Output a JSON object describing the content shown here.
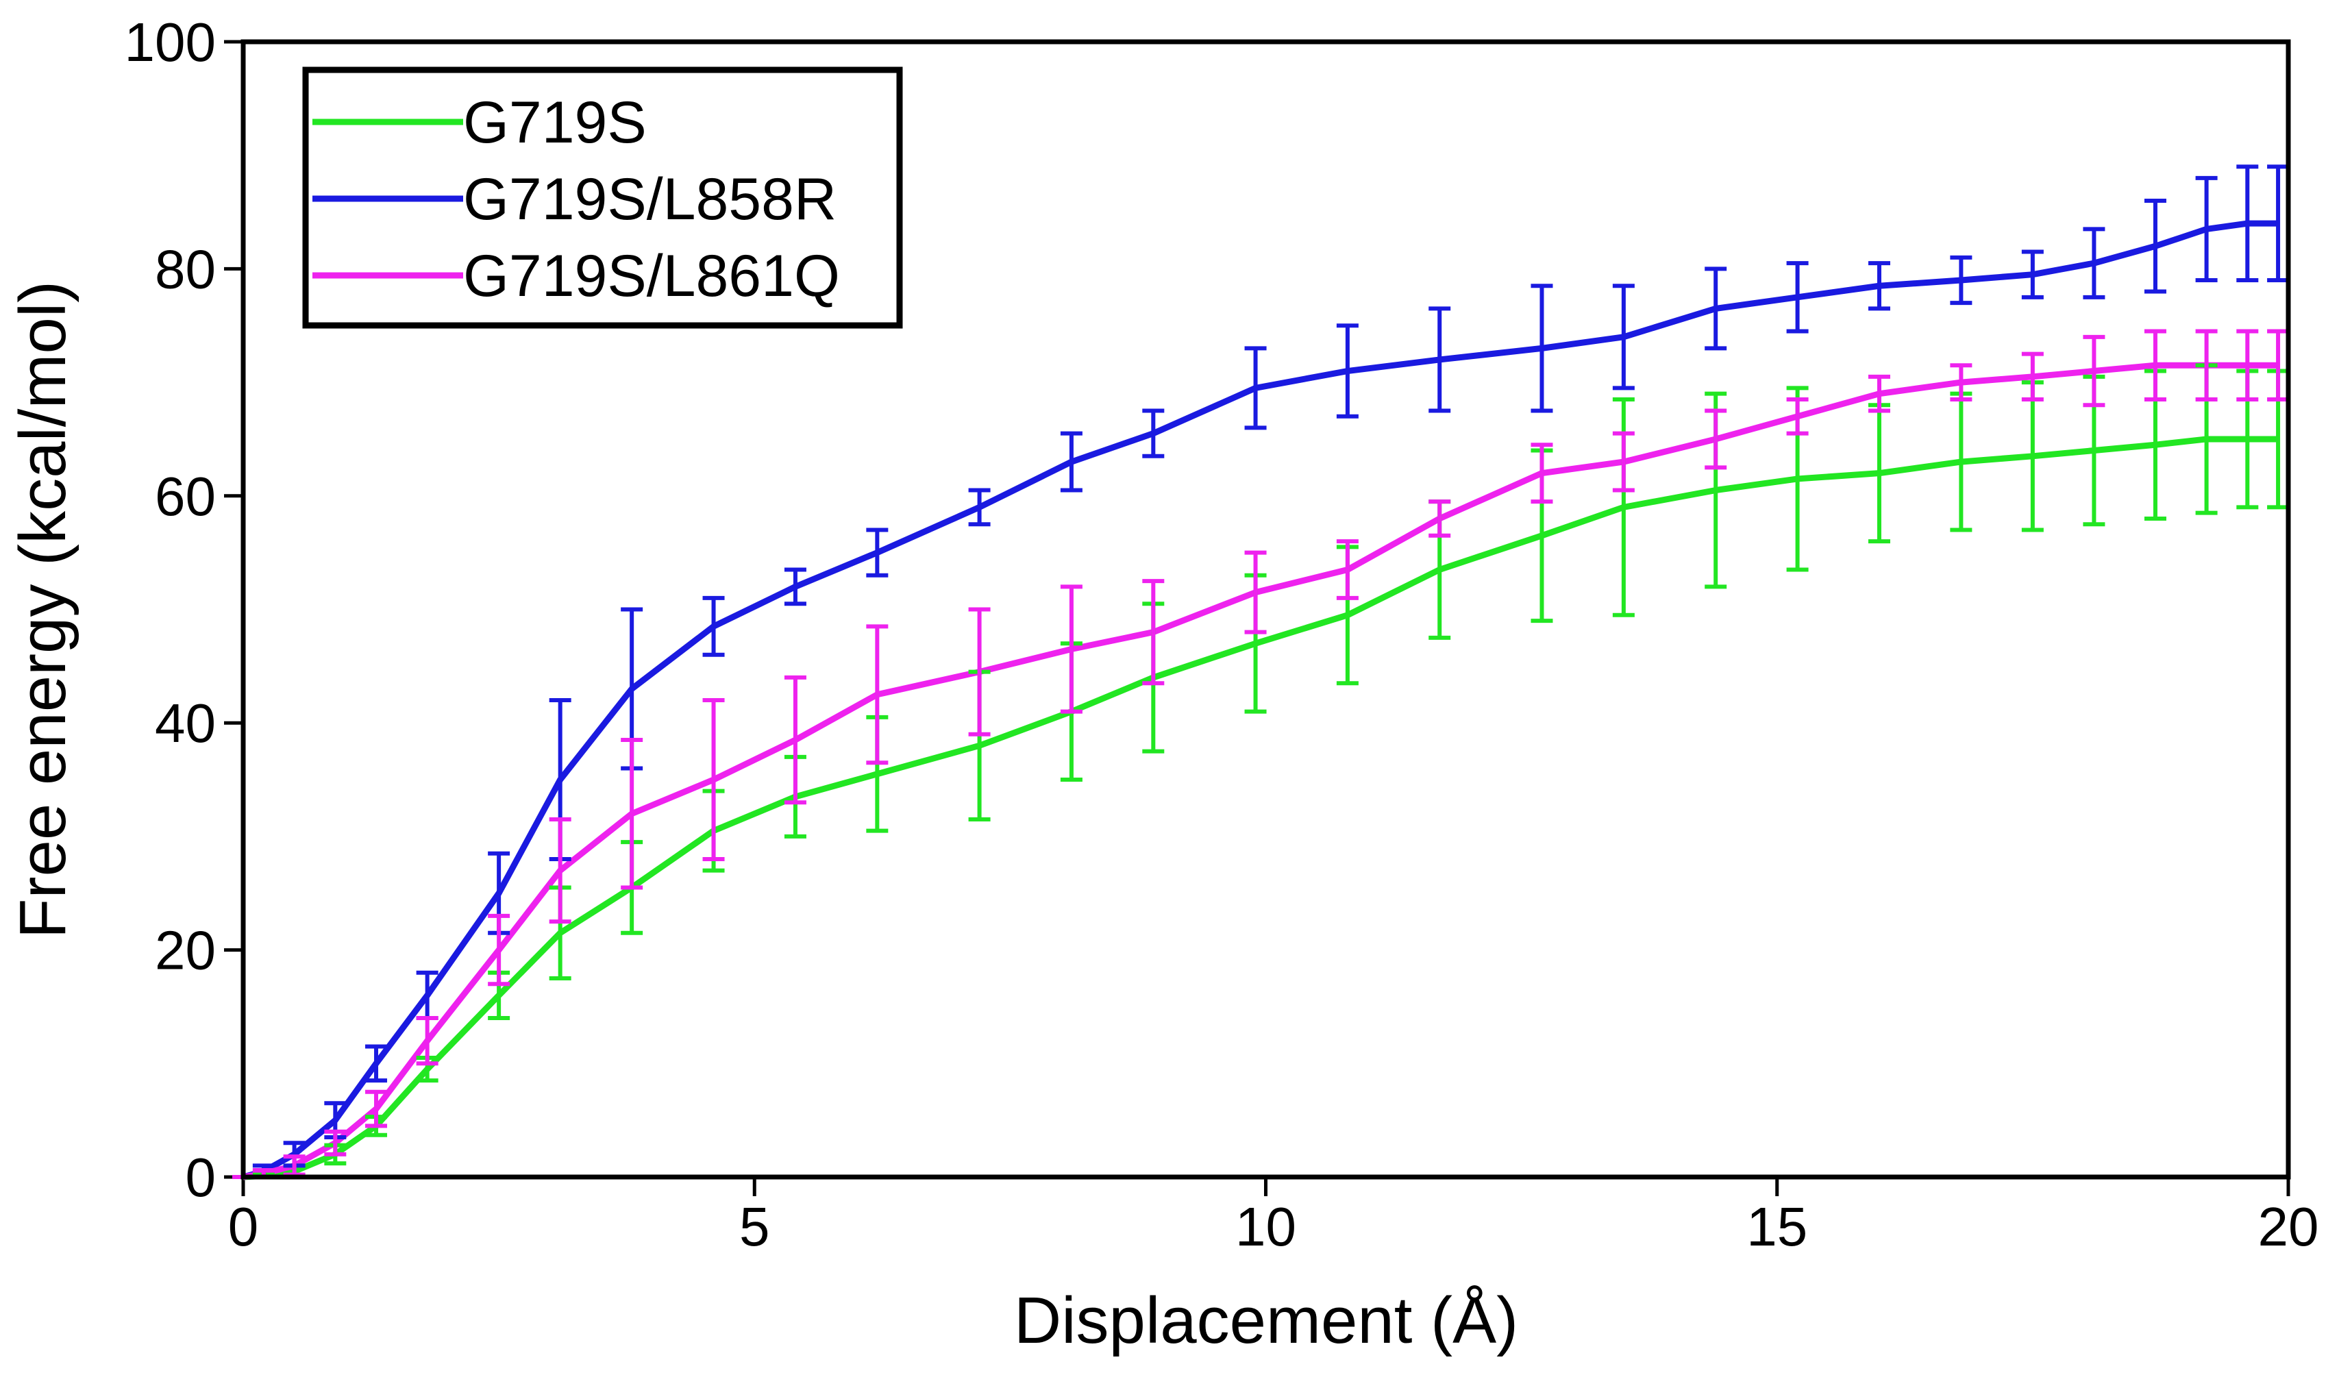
{
  "chart_data": {
    "type": "line",
    "xlabel": "Displacement (Å)",
    "ylabel": "Free energy (kcal/mol)",
    "x": [
      0,
      0.2,
      0.5,
      0.9,
      1.3,
      1.8,
      2.5,
      3.1,
      3.8,
      4.6,
      5.4,
      6.2,
      7.2,
      8.1,
      8.9,
      9.9,
      10.8,
      11.7,
      12.7,
      13.5,
      14.4,
      15.2,
      16,
      16.8,
      17.5,
      18.1,
      18.7,
      19.2,
      19.6,
      19.9
    ],
    "series": [
      {
        "name": "G719S",
        "color": "#22e622",
        "values": [
          0,
          0.1,
          0.5,
          2,
          4.5,
          9.5,
          16,
          21.5,
          25.5,
          30.5,
          33.5,
          35.5,
          38,
          41,
          44,
          47,
          49.5,
          53.5,
          56.5,
          59,
          60.5,
          61.5,
          62,
          63,
          63.5,
          64,
          64.5,
          65,
          65,
          65
        ],
        "errors": [
          0,
          0.1,
          0.5,
          0.8,
          0.8,
          1,
          2,
          4,
          4,
          3.5,
          3.5,
          5,
          6.5,
          6,
          6.5,
          6,
          6,
          6,
          7.5,
          9.5,
          8.5,
          8,
          6,
          6,
          6.5,
          6.5,
          6.5,
          6.5,
          6,
          6
        ]
      },
      {
        "name": "G719S/L858R",
        "color": "#1a1ae0",
        "values": [
          0,
          0.5,
          2,
          5,
          10,
          16,
          25,
          35,
          43,
          48.5,
          52,
          55,
          59,
          63,
          65.5,
          69.5,
          71,
          72,
          73,
          74,
          76.5,
          77.5,
          78.5,
          79,
          79.5,
          80.5,
          82,
          83.5,
          84,
          84
        ],
        "errors": [
          0,
          0.5,
          1,
          1.5,
          1.5,
          2,
          3.5,
          7,
          7,
          2.5,
          1.5,
          2,
          1.5,
          2.5,
          2,
          3.5,
          4,
          4.5,
          5.5,
          4.5,
          3.5,
          3,
          2,
          2,
          2,
          3,
          4,
          4.5,
          5,
          5
        ]
      },
      {
        "name": "G719S/L861Q",
        "color": "#ee22ee",
        "values": [
          0,
          0.3,
          1,
          3,
          6,
          12,
          20,
          27,
          32,
          35,
          38.5,
          42.5,
          44.5,
          46.5,
          48,
          51.5,
          53.5,
          58,
          62,
          63,
          65,
          67,
          69,
          70,
          70.5,
          71,
          71.5,
          71.5,
          71.5,
          71.5
        ],
        "errors": [
          0,
          0.3,
          0.8,
          1,
          1.5,
          2,
          3,
          4.5,
          6.5,
          7,
          5.5,
          6,
          5.5,
          5.5,
          4.5,
          3.5,
          2.5,
          1.5,
          2.5,
          2.5,
          2.5,
          1.5,
          1.5,
          1.5,
          2,
          3,
          3,
          3,
          3,
          3
        ]
      }
    ],
    "xlim": [
      0,
      20
    ],
    "xticks": [
      0,
      5,
      10,
      15,
      20
    ],
    "ylim": [
      0,
      100
    ],
    "yticks": [
      0,
      20,
      40,
      60,
      80,
      100
    ],
    "legend": "upper left"
  }
}
